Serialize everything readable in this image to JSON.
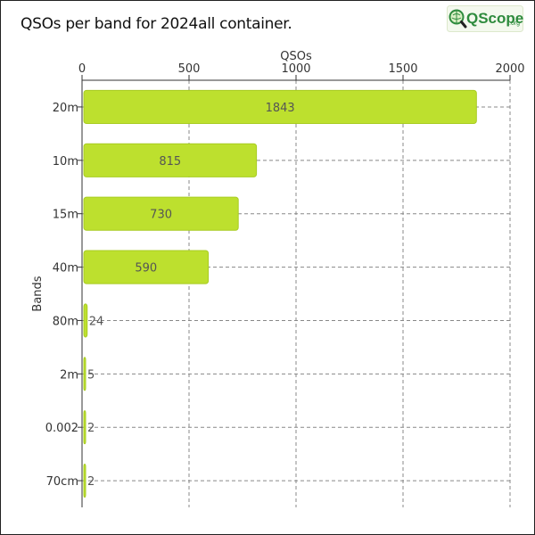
{
  "title": "QSOs per band for 2024all container.",
  "logo": {
    "text": "QScope",
    "suffix": ".org",
    "icon": "magnifier-globe-icon"
  },
  "colors": {
    "bar_fill": "#bde02e",
    "bar_stroke": "#a8cc22",
    "grid": "#888888",
    "logo_green": "#2e8b3d"
  },
  "chart_data": {
    "type": "bar",
    "orientation": "horizontal",
    "title": "QSOs per band for 2024all container.",
    "xlabel": "QSOs",
    "ylabel": "Bands",
    "xlim": [
      0,
      2000
    ],
    "xticks": [
      0,
      500,
      1000,
      1500,
      2000
    ],
    "grid": true,
    "categories": [
      "20m",
      "10m",
      "15m",
      "40m",
      "80m",
      "2m",
      "0.002",
      "70cm"
    ],
    "values": [
      1843,
      815,
      730,
      590,
      24,
      5,
      2,
      2
    ]
  }
}
